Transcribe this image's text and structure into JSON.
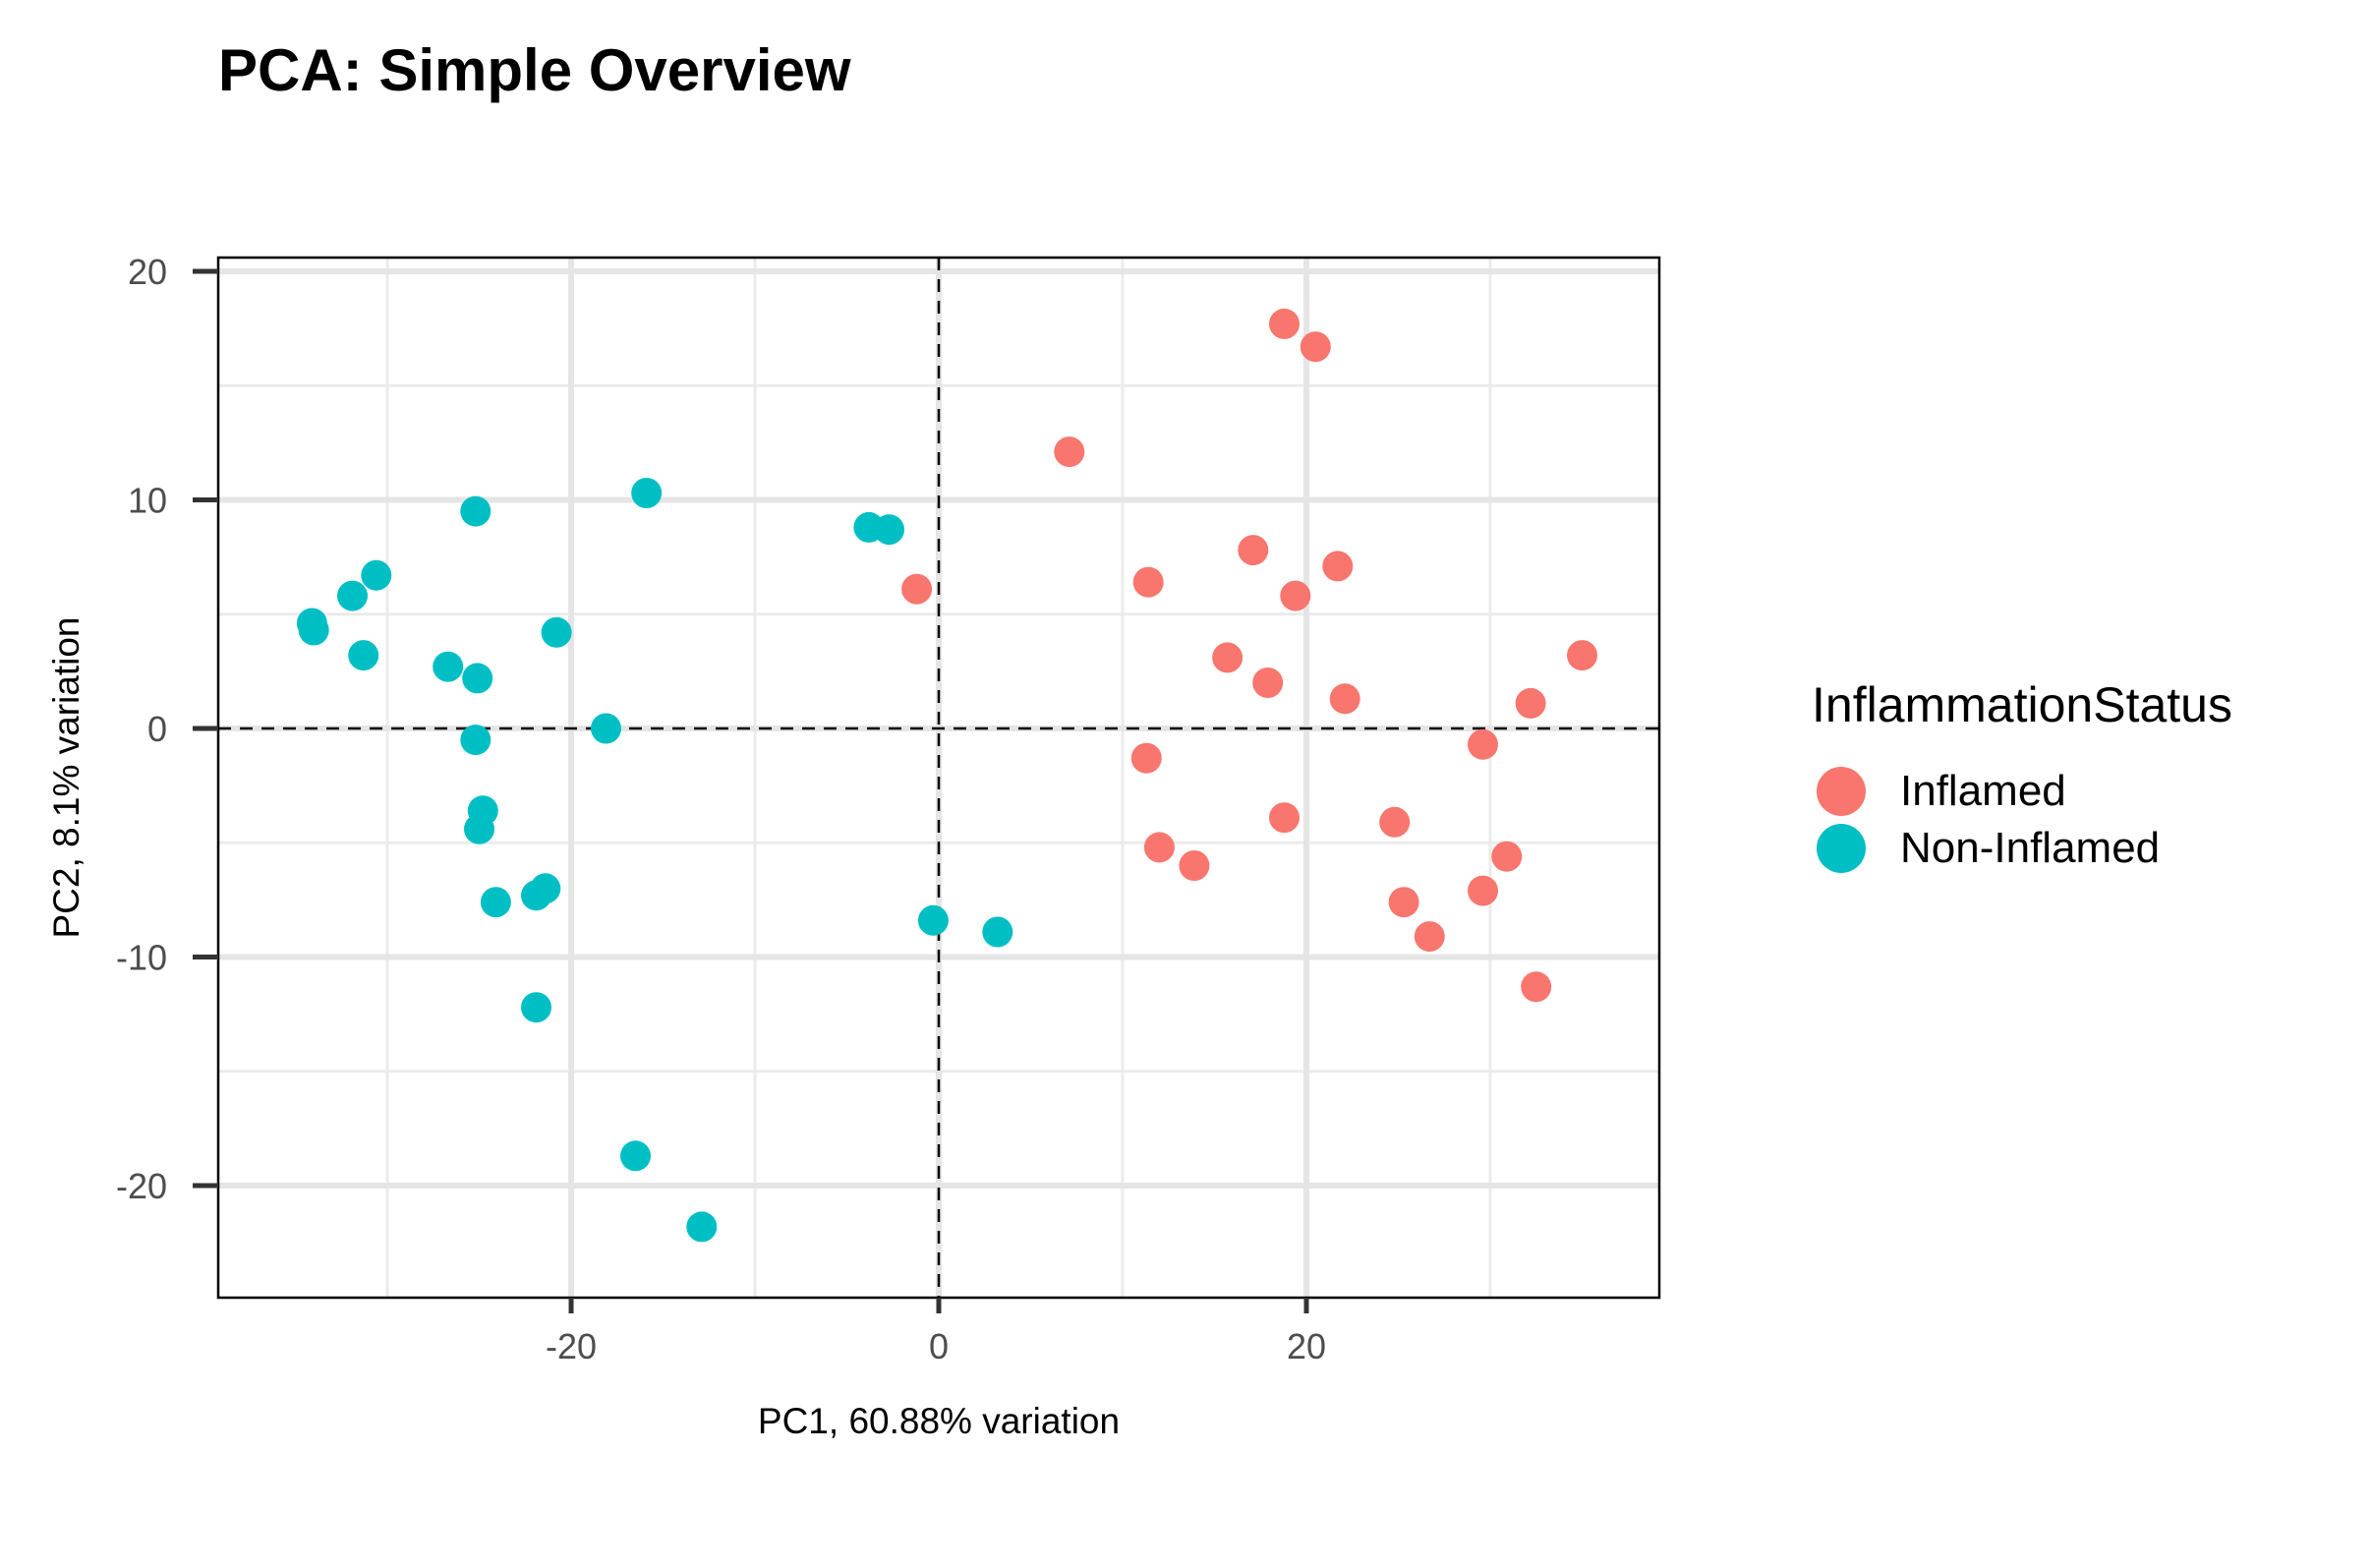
{
  "chart_data": {
    "type": "scatter",
    "title": "PCA: Simple Overview",
    "xlabel": "PC1, 60.88% variation",
    "ylabel": "PC2, 8.1% variation",
    "xlim": [
      -39.2,
      39.2
    ],
    "ylim": [
      -24.9,
      20.6
    ],
    "x_ticks": [
      -20,
      0,
      20
    ],
    "y_ticks": [
      -20,
      -10,
      0,
      10,
      20
    ],
    "x_tick_labels": [
      "-20",
      "0",
      "20"
    ],
    "y_tick_labels": [
      "-20",
      "-10",
      "0",
      "10",
      "20"
    ],
    "grid": true,
    "reference_lines": {
      "x": 0,
      "y": 0,
      "style": "dashed"
    },
    "legend": {
      "title": "InflammationStatus",
      "position": "right"
    },
    "series": [
      {
        "name": "Inflamed",
        "color": "#F8766D",
        "points": [
          [
            18.8,
            17.7
          ],
          [
            20.5,
            16.7
          ],
          [
            7.1,
            12.1
          ],
          [
            17.1,
            7.8
          ],
          [
            21.7,
            7.1
          ],
          [
            11.4,
            6.4
          ],
          [
            19.4,
            5.8
          ],
          [
            -1.2,
            6.1
          ],
          [
            15.7,
            3.1
          ],
          [
            17.9,
            2.0
          ],
          [
            22.1,
            1.3
          ],
          [
            35.0,
            3.2
          ],
          [
            32.2,
            1.1
          ],
          [
            29.6,
            -0.7
          ],
          [
            11.3,
            -1.3
          ],
          [
            18.8,
            -3.9
          ],
          [
            24.8,
            -4.1
          ],
          [
            12.0,
            -5.2
          ],
          [
            13.9,
            -6.0
          ],
          [
            30.9,
            -5.6
          ],
          [
            29.6,
            -7.1
          ],
          [
            25.3,
            -7.6
          ],
          [
            26.7,
            -9.1
          ],
          [
            32.5,
            -11.3
          ]
        ]
      },
      {
        "name": "Non-Inflamed",
        "color": "#00BFC4",
        "points": [
          [
            -25.2,
            9.5
          ],
          [
            -15.9,
            10.3
          ],
          [
            -3.8,
            8.8
          ],
          [
            -2.7,
            8.7
          ],
          [
            -30.6,
            6.7
          ],
          [
            -31.9,
            5.8
          ],
          [
            -34.1,
            4.6
          ],
          [
            -34.0,
            4.3
          ],
          [
            -31.3,
            3.2
          ],
          [
            -26.7,
            2.7
          ],
          [
            -25.1,
            2.2
          ],
          [
            -20.8,
            4.2
          ],
          [
            -18.1,
            0.0
          ],
          [
            -25.2,
            -0.5
          ],
          [
            -24.8,
            -3.6
          ],
          [
            -25.0,
            -4.4
          ],
          [
            -24.1,
            -7.6
          ],
          [
            -21.9,
            -7.3
          ],
          [
            -21.4,
            -7.0
          ],
          [
            -21.9,
            -12.2
          ],
          [
            -0.3,
            -8.4
          ],
          [
            3.2,
            -8.9
          ],
          [
            -16.5,
            -18.7
          ],
          [
            -12.9,
            -21.8
          ]
        ]
      }
    ]
  }
}
